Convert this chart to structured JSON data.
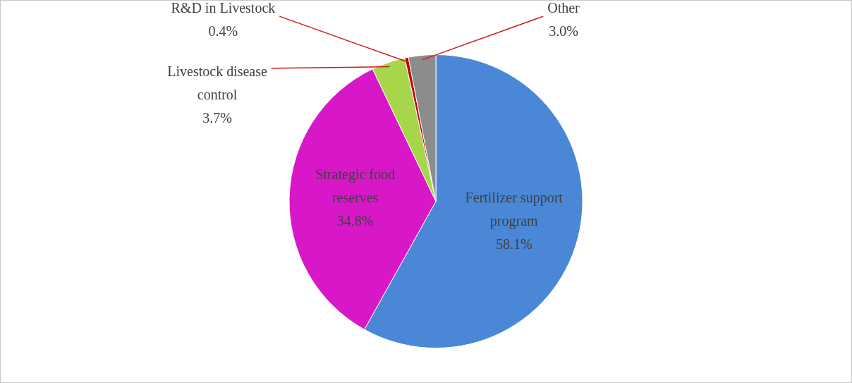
{
  "chart_data": {
    "type": "pie",
    "categories": [
      "Fertilizer support program",
      "Strategic food reserves",
      "Livestock disease control",
      "R&D in Livestock",
      "Other"
    ],
    "values": [
      58.1,
      34.8,
      3.7,
      0.4,
      3.0
    ],
    "colors": [
      "#4a87d6",
      "#d817c9",
      "#a7d64b",
      "#c00000",
      "#8c8c8c"
    ],
    "value_labels": [
      "58.1%",
      "34.8%",
      "3.7%",
      "0.4%",
      "3.0%"
    ],
    "legend": false
  }
}
